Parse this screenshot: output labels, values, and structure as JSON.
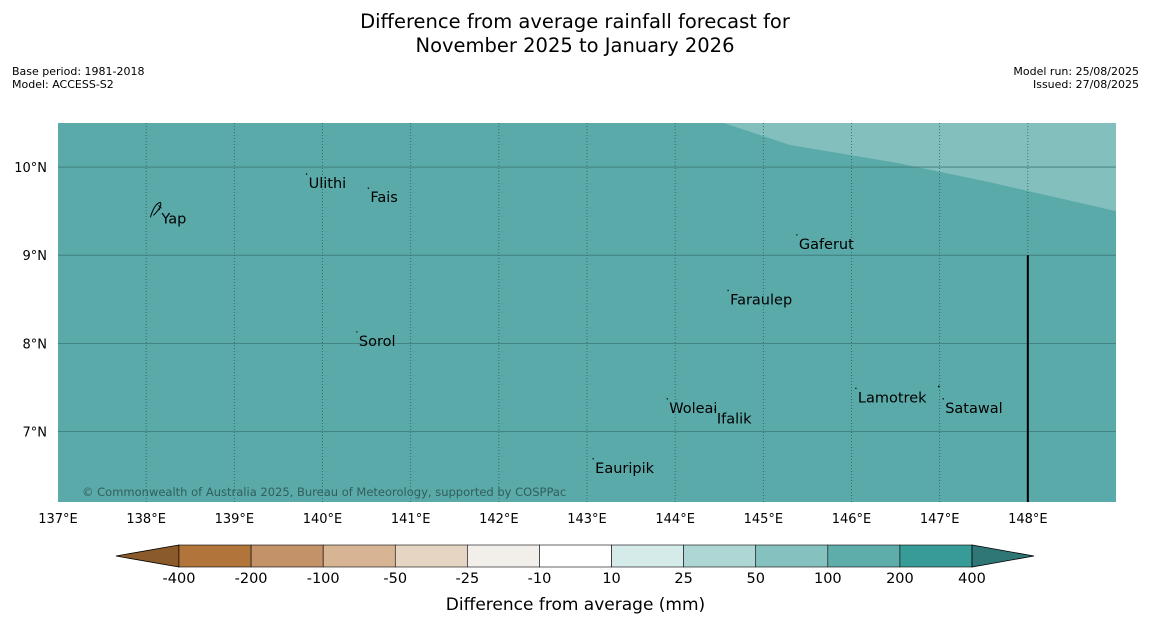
{
  "title": {
    "line1": "Difference from average rainfall forecast for",
    "line2": "November 2025 to January 2026"
  },
  "meta_left": {
    "base_period": "Base period: 1981-2018",
    "model": "Model: ACCESS-S2"
  },
  "meta_right": {
    "model_run": "Model run: 25/08/2025",
    "issued": "Issued: 27/08/2025"
  },
  "map": {
    "lon_range": [
      137,
      149
    ],
    "lat_range": [
      6.2,
      10.5
    ],
    "lon_ticks": [
      137,
      138,
      139,
      140,
      141,
      142,
      143,
      144,
      145,
      146,
      147,
      148
    ],
    "lon_tick_labels": [
      "137°E",
      "138°E",
      "139°E",
      "140°E",
      "141°E",
      "142°E",
      "143°E",
      "144°E",
      "145°E",
      "146°E",
      "147°E",
      "148°E"
    ],
    "lat_ticks": [
      10,
      9,
      8,
      7
    ],
    "lat_tick_labels": [
      "10°N",
      "9°N",
      "8°N",
      "7°N"
    ],
    "base_color": "#5aaaa9",
    "upper_band_color": "#82bfbd",
    "upper_band_edge": [
      [
        144.55,
        10.5
      ],
      [
        145.3,
        10.25
      ],
      [
        146.5,
        10.05
      ],
      [
        147.6,
        9.82
      ],
      [
        149,
        9.5
      ]
    ],
    "boundary_line": {
      "lon": 148,
      "lat_from": 6.2,
      "lat_to": 9
    }
  },
  "places": [
    {
      "name": "Ulithi",
      "lon": 139.82,
      "lat": 9.92
    },
    {
      "name": "Fais",
      "lon": 140.52,
      "lat": 9.76
    },
    {
      "name": "Yap",
      "lon": 138.15,
      "lat": 9.52
    },
    {
      "name": "Gaferut",
      "lon": 145.38,
      "lat": 9.23
    },
    {
      "name": "Faraulep",
      "lon": 144.6,
      "lat": 8.6
    },
    {
      "name": "Sorol",
      "lon": 140.39,
      "lat": 8.13
    },
    {
      "name": "Lamotrek",
      "lon": 146.05,
      "lat": 7.49
    },
    {
      "name": "Woleai",
      "lon": 143.91,
      "lat": 7.37
    },
    {
      "name": "Ifalik",
      "lon": 144.45,
      "lat": 7.25
    },
    {
      "name": "Satawal",
      "lon": 147.04,
      "lat": 7.37
    },
    {
      "name": "Eauripik",
      "lon": 143.07,
      "lat": 6.69
    }
  ],
  "copyright": "© Commonwealth of Australia 2025, Bureau of Meteorology, supported by COSPPac",
  "colorbar": {
    "title": "Difference from average (mm)",
    "labels": [
      "-400",
      "-200",
      "-100",
      "-50",
      "-25",
      "-10",
      "10",
      "25",
      "50",
      "100",
      "200",
      "400"
    ],
    "colors": [
      "#8b5a2b",
      "#b1753c",
      "#c49268",
      "#d7b493",
      "#e7d5c4",
      "#f2efea",
      "#ffffff",
      "#d5ebea",
      "#add6d5",
      "#84c1bf",
      "#5eadaa",
      "#379c98",
      "#2f7776"
    ]
  }
}
